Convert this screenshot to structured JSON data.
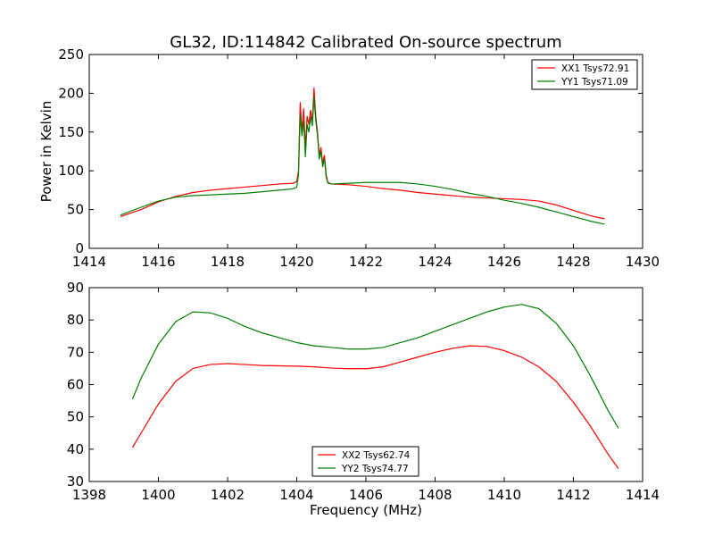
{
  "figure": {
    "title": "GL32, ID:114842 Calibrated On-source spectrum"
  },
  "colors": {
    "xx": "#ff0000",
    "yy": "#008000",
    "axis": "#000000"
  },
  "chart_data": [
    {
      "type": "line",
      "title": "GL32, ID:114842 Calibrated On-source spectrum",
      "xlabel": "",
      "ylabel": "Power in Kelvin",
      "xlim": [
        1414,
        1430
      ],
      "ylim": [
        0,
        250
      ],
      "xticks": [
        "1414",
        "1416",
        "1418",
        "1420",
        "1422",
        "1424",
        "1426",
        "1428",
        "1430"
      ],
      "yticks": [
        "0",
        "50",
        "100",
        "150",
        "200",
        "250"
      ],
      "grid": false,
      "legend_position": "top-right",
      "series": [
        {
          "name": "XX1 Tsys72.91",
          "color": "#ff0000",
          "x": [
            1414.9,
            1415.5,
            1416,
            1416.5,
            1417,
            1417.5,
            1418,
            1418.5,
            1419,
            1419.5,
            1419.9,
            1420.0,
            1420.05,
            1420.1,
            1420.15,
            1420.2,
            1420.25,
            1420.3,
            1420.35,
            1420.4,
            1420.45,
            1420.5,
            1420.55,
            1420.6,
            1420.65,
            1420.7,
            1420.75,
            1420.8,
            1420.85,
            1420.9,
            1421.0,
            1421.5,
            1422,
            1422.5,
            1423,
            1423.5,
            1424,
            1424.5,
            1425,
            1425.5,
            1426,
            1426.5,
            1427,
            1427.5,
            1428,
            1428.5,
            1428.9
          ],
          "y": [
            41,
            50,
            60,
            67,
            72,
            75,
            77,
            79,
            81,
            83,
            84,
            86,
            100,
            188,
            150,
            180,
            130,
            170,
            160,
            178,
            165,
            207,
            170,
            150,
            120,
            130,
            110,
            120,
            95,
            85,
            83,
            82,
            80,
            77,
            75,
            72,
            70,
            68,
            66,
            65,
            64,
            63,
            61,
            56,
            49,
            42,
            38
          ]
        },
        {
          "name": "YY1 Tsys71.09",
          "color": "#008000",
          "x": [
            1414.9,
            1415.5,
            1416,
            1416.5,
            1417,
            1417.5,
            1418,
            1418.5,
            1419,
            1419.5,
            1419.9,
            1420.0,
            1420.05,
            1420.1,
            1420.15,
            1420.2,
            1420.25,
            1420.3,
            1420.35,
            1420.4,
            1420.45,
            1420.5,
            1420.55,
            1420.6,
            1420.65,
            1420.7,
            1420.75,
            1420.8,
            1420.85,
            1420.9,
            1421.0,
            1421.5,
            1422,
            1422.5,
            1423,
            1423.5,
            1424,
            1424.5,
            1425,
            1425.5,
            1426,
            1426.5,
            1427,
            1427.5,
            1428,
            1428.5,
            1428.9
          ],
          "y": [
            43,
            53,
            61,
            66,
            68,
            69,
            70,
            71,
            73,
            75,
            77,
            79,
            95,
            172,
            145,
            165,
            118,
            160,
            150,
            170,
            158,
            195,
            165,
            145,
            115,
            125,
            105,
            115,
            92,
            84,
            83,
            84,
            85,
            85,
            85,
            83,
            80,
            76,
            71,
            67,
            62,
            58,
            53,
            47,
            41,
            35,
            31
          ]
        }
      ]
    },
    {
      "type": "line",
      "title": "",
      "xlabel": "Frequency (MHz)",
      "ylabel": "",
      "xlim": [
        1398,
        1414
      ],
      "ylim": [
        30,
        90
      ],
      "xticks": [
        "1398",
        "1400",
        "1402",
        "1404",
        "1406",
        "1408",
        "1410",
        "1412",
        "1414"
      ],
      "yticks": [
        "30",
        "40",
        "50",
        "60",
        "70",
        "80",
        "90"
      ],
      "grid": false,
      "legend_position": "lower-center",
      "series": [
        {
          "name": "XX2 Tsys62.74",
          "color": "#ff0000",
          "x": [
            1399.25,
            1399.5,
            1400,
            1400.5,
            1401,
            1401.5,
            1402,
            1402.5,
            1403,
            1403.5,
            1404,
            1404.5,
            1405,
            1405.5,
            1406,
            1406.5,
            1407,
            1407.5,
            1408,
            1408.5,
            1409,
            1409.5,
            1410,
            1410.5,
            1411,
            1411.5,
            1412,
            1412.5,
            1413,
            1413.3
          ],
          "y": [
            40.5,
            45,
            54,
            61,
            65,
            66.2,
            66.5,
            66.2,
            65.9,
            65.8,
            65.7,
            65.5,
            65.1,
            64.9,
            64.9,
            65.5,
            67,
            68.5,
            70,
            71.2,
            72,
            71.8,
            70.5,
            68.5,
            65.5,
            61,
            54.5,
            47,
            38.5,
            34
          ]
        },
        {
          "name": "YY2 Tsys74.77",
          "color": "#008000",
          "x": [
            1399.25,
            1399.5,
            1400,
            1400.5,
            1401,
            1401.5,
            1402,
            1402.5,
            1403,
            1403.5,
            1404,
            1404.5,
            1405,
            1405.5,
            1406,
            1406.5,
            1407,
            1407.5,
            1408,
            1408.5,
            1409,
            1409.5,
            1410,
            1410.5,
            1411,
            1411.5,
            1412,
            1412.5,
            1413,
            1413.3
          ],
          "y": [
            55.5,
            62,
            72.5,
            79.5,
            82.5,
            82.2,
            80.5,
            78,
            76,
            74.5,
            73,
            72,
            71.5,
            71,
            71,
            71.5,
            73,
            74.5,
            76.5,
            78.5,
            80.5,
            82.5,
            84,
            84.8,
            83.5,
            79,
            72,
            62.5,
            52,
            46.5
          ]
        }
      ]
    }
  ]
}
